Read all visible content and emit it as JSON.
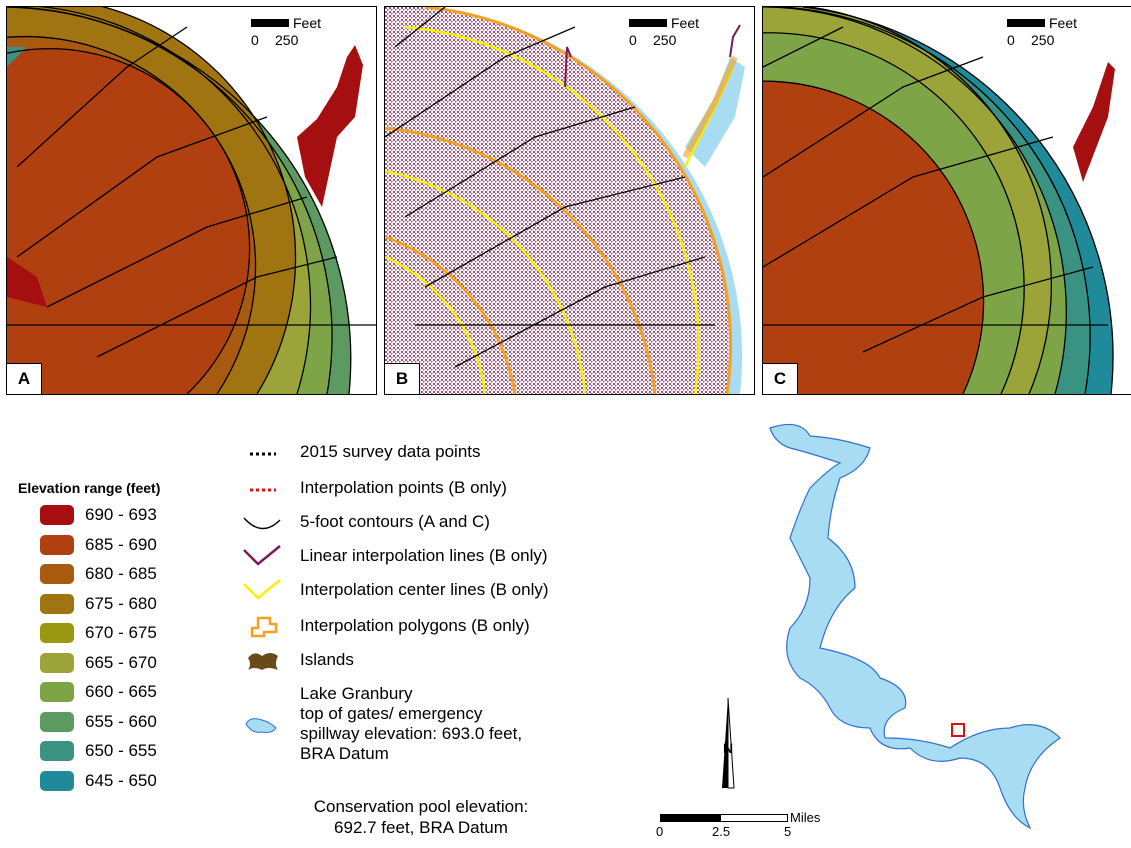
{
  "panels": [
    {
      "id": "A",
      "letter": "A",
      "scale": {
        "unit": "Feet",
        "ticks": [
          "0",
          "250"
        ]
      }
    },
    {
      "id": "B",
      "letter": "B",
      "scale": {
        "unit": "Feet",
        "ticks": [
          "0",
          "250"
        ]
      }
    },
    {
      "id": "C",
      "letter": "C",
      "scale": {
        "unit": "Feet",
        "ticks": [
          "0",
          "250"
        ]
      }
    }
  ],
  "elevation_legend": {
    "title": "Elevation range (feet)",
    "classes": [
      {
        "label": "690 - 693",
        "color": "#a50f0f"
      },
      {
        "label": "685 - 690",
        "color": "#b04010"
      },
      {
        "label": "680 - 685",
        "color": "#a85a10"
      },
      {
        "label": "675 - 680",
        "color": "#a07410"
      },
      {
        "label": "670 - 675",
        "color": "#9a9810"
      },
      {
        "label": "665 - 670",
        "color": "#9aa438"
      },
      {
        "label": "660 - 665",
        "color": "#7ea448"
      },
      {
        "label": "655 - 660",
        "color": "#5c9a62"
      },
      {
        "label": "650 - 655",
        "color": "#3a9282"
      },
      {
        "label": "645 - 650",
        "color": "#1f8a9a"
      }
    ]
  },
  "symbol_legend": [
    {
      "label": "2015 survey data points",
      "icon": "black-dotted-line-icon"
    },
    {
      "label": "Interpolation points (B only)",
      "icon": "red-dotted-line-icon"
    },
    {
      "label": "5-foot contours (A and C)",
      "icon": "contour-line-icon"
    },
    {
      "label": "Linear interpolation lines (B only)",
      "icon": "purple-line-icon"
    },
    {
      "label": "Interpolation center lines (B only)",
      "icon": "yellow-line-icon"
    },
    {
      "label": "Interpolation polygons (B only)",
      "icon": "orange-polygon-icon"
    },
    {
      "label": "Islands",
      "icon": "island-icon"
    }
  ],
  "lake": {
    "lines": [
      "Lake Granbury",
      "top of gates/ emergency",
      "spillway elevation: 693.0 feet,",
      "BRA Datum"
    ],
    "icon": "lake-icon"
  },
  "pool": {
    "lines": [
      "Conservation pool elevation:",
      "692.7 feet, BRA Datum"
    ]
  },
  "inset": {
    "north": "N",
    "scale": {
      "unit": "Miles",
      "ticks": [
        "0",
        "2.5",
        "5"
      ]
    }
  },
  "colors": {
    "lake": "#a8dcf2",
    "lake_outline": "#3070d0",
    "locator": "#e01010",
    "island": "#6b4a1a"
  }
}
